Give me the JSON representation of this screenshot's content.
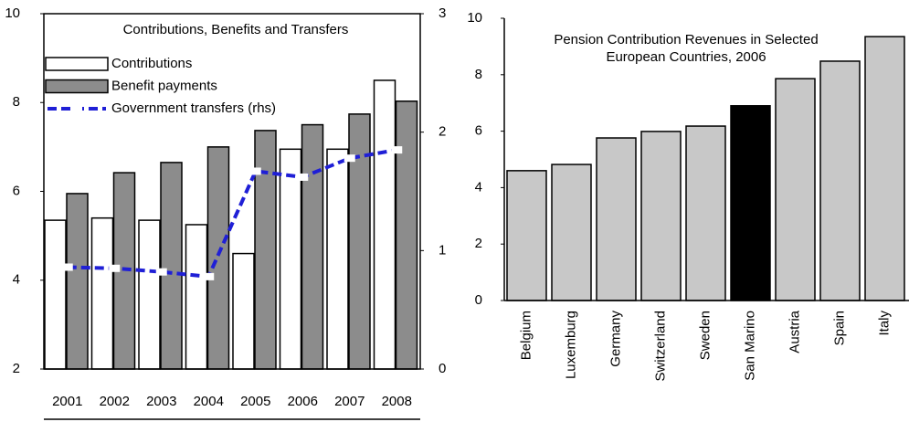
{
  "chart_data": [
    {
      "type": "bar",
      "title": "Contributions, Benefits and Transfers",
      "categories": [
        "2001",
        "2002",
        "2003",
        "2004",
        "2005",
        "2006",
        "2007",
        "2008"
      ],
      "series": [
        {
          "name": "Contributions",
          "color": "#ffffff",
          "values": [
            5.35,
            5.4,
            5.35,
            5.25,
            4.6,
            6.95,
            6.95,
            8.5
          ]
        },
        {
          "name": "Benefit payments",
          "color": "#8c8c8c",
          "values": [
            5.95,
            6.42,
            6.65,
            7.0,
            7.37,
            7.5,
            7.74,
            8.03
          ]
        },
        {
          "name": "Government transfers (rhs)",
          "color": "#1f1fd6",
          "type": "line",
          "axis": "y2",
          "values": [
            0.86,
            0.85,
            0.82,
            0.78,
            1.67,
            1.62,
            1.78,
            1.85
          ]
        }
      ],
      "ylim": [
        2,
        10
      ],
      "yticks": [
        2,
        4,
        6,
        8,
        10
      ],
      "y2lim": [
        0,
        3
      ],
      "y2ticks": [
        0,
        1,
        2,
        3
      ],
      "legend": "upper left"
    },
    {
      "type": "bar",
      "title": [
        "Pension Contribution Revenues in Selected",
        "European Countries, 2006"
      ],
      "categories": [
        "Belgium",
        "Luxemburg",
        "Germany",
        "Switzerland",
        "Sweden",
        "San Marino",
        "Austria",
        "Spain",
        "Italy"
      ],
      "values": [
        4.6,
        4.82,
        5.76,
        5.99,
        6.18,
        6.9,
        7.86,
        8.48,
        9.35
      ],
      "colors": [
        "#c8c8c8",
        "#c8c8c8",
        "#c8c8c8",
        "#c8c8c8",
        "#c8c8c8",
        "#000000",
        "#c8c8c8",
        "#c8c8c8",
        "#c8c8c8"
      ],
      "ylim": [
        0,
        10
      ],
      "yticks": [
        0,
        2,
        4,
        6,
        8,
        10
      ]
    }
  ]
}
